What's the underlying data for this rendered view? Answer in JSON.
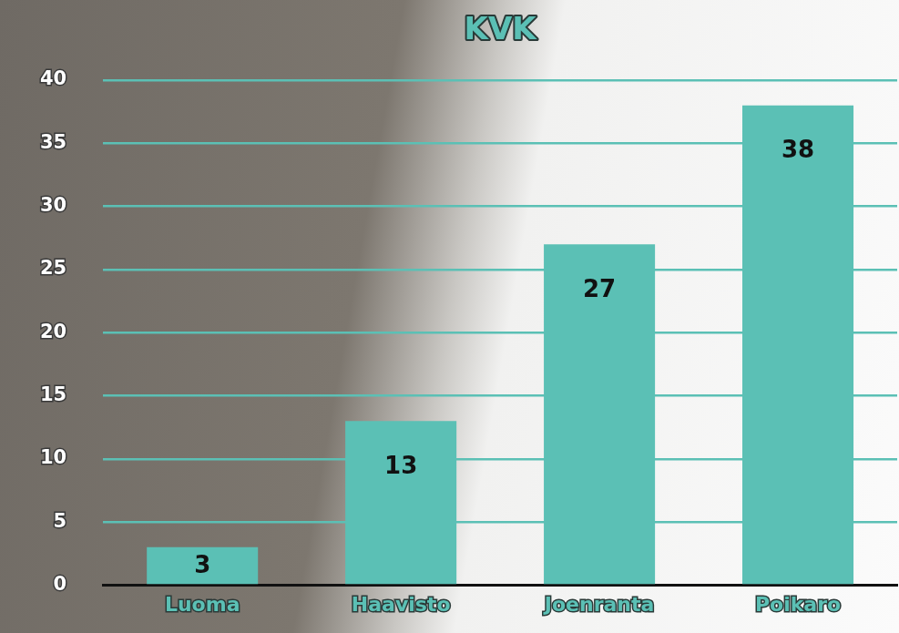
{
  "chart_data": {
    "type": "bar",
    "title": "KVK",
    "categories": [
      "Luoma",
      "Haavisto",
      "Joenranta",
      "Poikaro"
    ],
    "values": [
      3,
      13,
      27,
      38
    ],
    "color": "#5bc0b5",
    "ylim": [
      0,
      40
    ],
    "yticks": [
      0,
      5,
      10,
      15,
      20,
      25,
      30,
      35,
      40
    ],
    "grid": true,
    "data_labels": true
  }
}
